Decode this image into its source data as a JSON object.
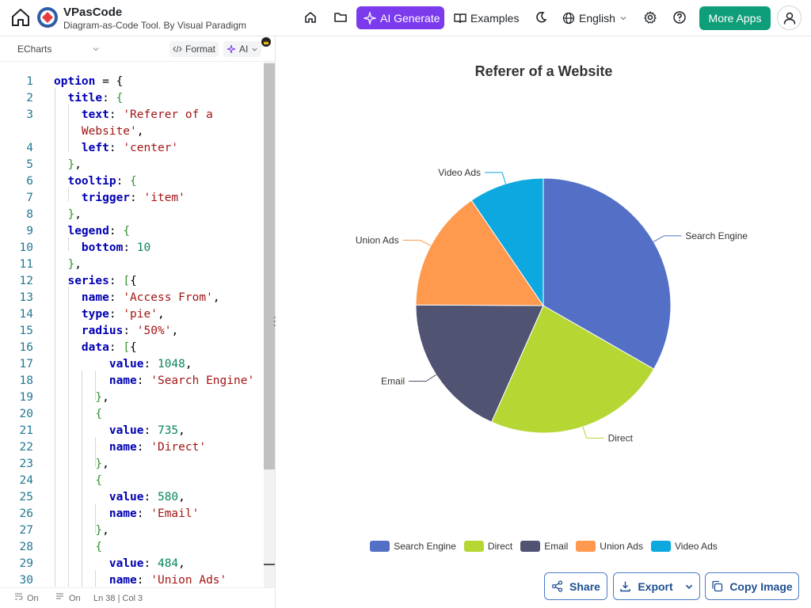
{
  "header": {
    "app_name": "VPasCode",
    "app_subtitle": "Diagram-as-Code Tool. By Visual Paradigm",
    "ai_generate_label": "AI Generate",
    "examples_label": "Examples",
    "language_label": "English",
    "more_apps_label": "More Apps"
  },
  "editor": {
    "language": "ECharts",
    "format_label": "Format",
    "ai_label": "AI",
    "status": {
      "wrap": "On",
      "format": "On",
      "position": "Ln 38 | Col 3"
    },
    "line_numbers": [
      "1",
      "2",
      "3",
      "",
      "4",
      "5",
      "6",
      "7",
      "8",
      "9",
      "10",
      "11",
      "12",
      "13",
      "14",
      "15",
      "16",
      "17",
      "18",
      "19",
      "20",
      "21",
      "22",
      "23",
      "24",
      "25",
      "26",
      "27",
      "28",
      "29",
      "30"
    ]
  },
  "chart_data": {
    "type": "pie",
    "title": "Referer of a Website",
    "series_name": "Access From",
    "radius": "50%",
    "data": [
      {
        "name": "Search Engine",
        "value": 1048,
        "color": "#5470c6"
      },
      {
        "name": "Direct",
        "value": 735,
        "color": "#b6d634"
      },
      {
        "name": "Email",
        "value": 580,
        "color": "#505372"
      },
      {
        "name": "Union Ads",
        "value": 484,
        "color": "#ff994d"
      },
      {
        "name": "Video Ads",
        "value": 300,
        "color": "#0ca8df"
      }
    ],
    "legend_position": "bottom"
  },
  "actions": {
    "share_label": "Share",
    "export_label": "Export",
    "copy_image_label": "Copy Image"
  }
}
